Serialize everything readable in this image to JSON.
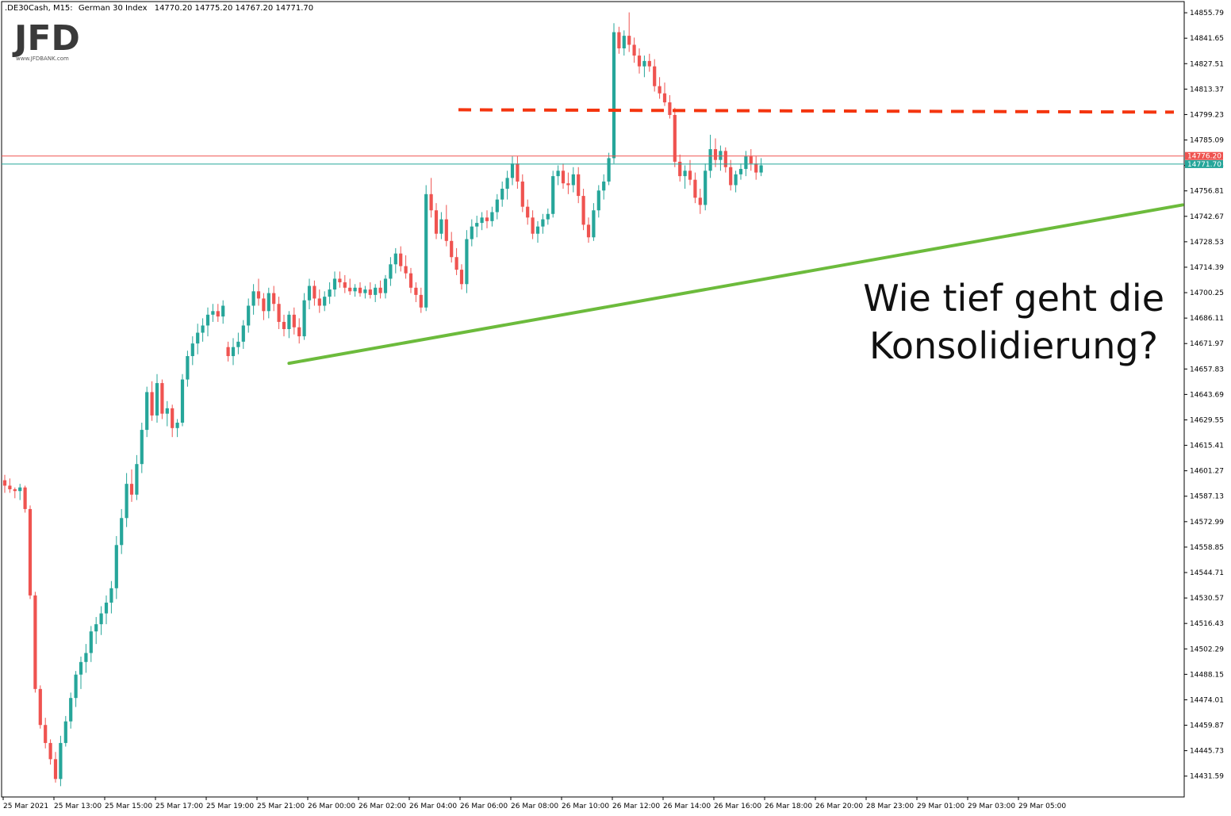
{
  "header": {
    "symbol": ".DE30Cash, M15:",
    "instrument": "German 30 Index",
    "ohlc": "14770.20 14775.20 14767.20 14771.70"
  },
  "logo": {
    "text": "JFD",
    "sub": "www.JFDBANK.com"
  },
  "annotation": {
    "line1": "Wie tief geht die",
    "line2": "Konsolidierung?"
  },
  "colors": {
    "bull": "#26a69a",
    "bear": "#ef5350",
    "resistance": "#f4350f",
    "trendline": "#6cbb3c",
    "ask_line": "#ef5350",
    "bid_line": "#26a69a"
  },
  "chart_data": {
    "type": "candlestick",
    "timeframe": "M15",
    "ylim": [
      14420,
      14862
    ],
    "y_ticks": [
      "14855.79",
      "14841.65",
      "14827.51",
      "14813.37",
      "14799.23",
      "14785.09",
      "14770.95",
      "14756.81",
      "14742.67",
      "14728.53",
      "14714.39",
      "14700.25",
      "14686.11",
      "14671.97",
      "14657.83",
      "14643.69",
      "14629.55",
      "14615.41",
      "14601.27",
      "14587.13",
      "14572.99",
      "14558.85",
      "14544.71",
      "14530.57",
      "14516.43",
      "14502.29",
      "14488.15",
      "14474.01",
      "14459.87",
      "14445.73",
      "14431.59"
    ],
    "x_ticks": [
      "25 Mar 2021",
      "25 Mar 13:00",
      "25 Mar 15:00",
      "25 Mar 17:00",
      "25 Mar 19:00",
      "25 Mar 21:00",
      "26 Mar 00:00",
      "26 Mar 02:00",
      "26 Mar 04:00",
      "26 Mar 06:00",
      "26 Mar 08:00",
      "26 Mar 10:00",
      "26 Mar 12:00",
      "26 Mar 14:00",
      "26 Mar 16:00",
      "26 Mar 18:00",
      "26 Mar 20:00",
      "28 Mar 23:00",
      "29 Mar 01:00",
      "29 Mar 03:00",
      "29 Mar 05:00"
    ],
    "price_labels": {
      "ask": "14776.20",
      "bid": "14771.70"
    },
    "resistance_level": 14801,
    "trendline": {
      "from": {
        "candle": 56,
        "price": 14661
      },
      "to": {
        "candle": 232,
        "price": 14749
      }
    },
    "candles": [
      [
        14596,
        14599,
        14589,
        14593
      ],
      [
        14593,
        14597,
        14589,
        14591
      ],
      [
        14591,
        14592,
        14586,
        14590
      ],
      [
        14590,
        14594,
        14585,
        14592
      ],
      [
        14592,
        14593,
        14578,
        14580
      ],
      [
        14580,
        14582,
        14530,
        14532
      ],
      [
        14532,
        14534,
        14478,
        14480
      ],
      [
        14480,
        14482,
        14458,
        14460
      ],
      [
        14460,
        14464,
        14447,
        14450
      ],
      [
        14450,
        14452,
        14438,
        14441
      ],
      [
        14441,
        14445,
        14428,
        14430
      ],
      [
        14430,
        14454,
        14426,
        14450
      ],
      [
        14450,
        14465,
        14448,
        14462
      ],
      [
        14462,
        14478,
        14458,
        14475
      ],
      [
        14475,
        14490,
        14470,
        14488
      ],
      [
        14488,
        14498,
        14480,
        14495
      ],
      [
        14495,
        14505,
        14489,
        14500
      ],
      [
        14500,
        14515,
        14495,
        14512
      ],
      [
        14512,
        14520,
        14505,
        14516
      ],
      [
        14516,
        14526,
        14510,
        14522
      ],
      [
        14522,
        14532,
        14516,
        14528
      ],
      [
        14528,
        14540,
        14522,
        14536
      ],
      [
        14536,
        14565,
        14530,
        14560
      ],
      [
        14560,
        14580,
        14555,
        14575
      ],
      [
        14575,
        14600,
        14570,
        14594
      ],
      [
        14594,
        14602,
        14584,
        14588
      ],
      [
        14588,
        14610,
        14585,
        14605
      ],
      [
        14605,
        14628,
        14600,
        14624
      ],
      [
        14624,
        14648,
        14620,
        14645
      ],
      [
        14645,
        14651,
        14629,
        14632
      ],
      [
        14632,
        14655,
        14628,
        14650
      ],
      [
        14650,
        14652,
        14630,
        14633
      ],
      [
        14633,
        14640,
        14626,
        14636
      ],
      [
        14636,
        14638,
        14620,
        14625
      ],
      [
        14625,
        14630,
        14620,
        14628
      ],
      [
        14628,
        14655,
        14626,
        14652
      ],
      [
        14652,
        14668,
        14648,
        14665
      ],
      [
        14665,
        14676,
        14660,
        14672
      ],
      [
        14672,
        14683,
        14666,
        14678
      ],
      [
        14678,
        14686,
        14673,
        14682
      ],
      [
        14682,
        14692,
        14676,
        14688
      ],
      [
        14688,
        14694,
        14684,
        14690
      ],
      [
        14690,
        14694,
        14684,
        14687
      ],
      [
        14687,
        14696,
        14683,
        14693
      ],
      [
        14670,
        14673,
        14662,
        14665
      ],
      [
        14665,
        14675,
        14660,
        14670
      ],
      [
        14670,
        14678,
        14666,
        14673
      ],
      [
        14673,
        14685,
        14669,
        14682
      ],
      [
        14682,
        14697,
        14678,
        14693
      ],
      [
        14693,
        14705,
        14688,
        14701
      ],
      [
        14701,
        14708,
        14693,
        14697
      ],
      [
        14697,
        14700,
        14685,
        14690
      ],
      [
        14690,
        14703,
        14686,
        14700
      ],
      [
        14700,
        14704,
        14690,
        14694
      ],
      [
        14694,
        14698,
        14680,
        14684
      ],
      [
        14684,
        14688,
        14676,
        14680
      ],
      [
        14680,
        14690,
        14675,
        14688
      ],
      [
        14688,
        14692,
        14677,
        14681
      ],
      [
        14681,
        14686,
        14672,
        14676
      ],
      [
        14676,
        14700,
        14674,
        14696
      ],
      [
        14696,
        14708,
        14691,
        14704
      ],
      [
        14704,
        14707,
        14693,
        14697
      ],
      [
        14697,
        14702,
        14689,
        14693
      ],
      [
        14693,
        14701,
        14690,
        14698
      ],
      [
        14698,
        14706,
        14694,
        14702
      ],
      [
        14702,
        14712,
        14698,
        14708
      ],
      [
        14708,
        14712,
        14703,
        14706
      ],
      [
        14706,
        14710,
        14700,
        14703
      ],
      [
        14703,
        14708,
        14699,
        14701
      ],
      [
        14701,
        14705,
        14698,
        14703
      ],
      [
        14703,
        14706,
        14698,
        14700
      ],
      [
        14700,
        14704,
        14697,
        14702
      ],
      [
        14702,
        14706,
        14697,
        14699
      ],
      [
        14699,
        14705,
        14695,
        14703
      ],
      [
        14703,
        14707,
        14697,
        14700
      ],
      [
        14700,
        14710,
        14697,
        14708
      ],
      [
        14708,
        14720,
        14704,
        14716
      ],
      [
        14716,
        14725,
        14711,
        14722
      ],
      [
        14722,
        14726,
        14712,
        14715
      ],
      [
        14715,
        14721,
        14708,
        14711
      ],
      [
        14711,
        14714,
        14700,
        14703
      ],
      [
        14703,
        14706,
        14695,
        14699
      ],
      [
        14699,
        14703,
        14689,
        14692
      ],
      [
        14692,
        14760,
        14690,
        14755
      ],
      [
        14755,
        14764,
        14742,
        14746
      ],
      [
        14746,
        14750,
        14730,
        14733
      ],
      [
        14733,
        14745,
        14730,
        14741
      ],
      [
        14741,
        14749,
        14726,
        14729
      ],
      [
        14729,
        14734,
        14717,
        14720
      ],
      [
        14720,
        14725,
        14710,
        14713
      ],
      [
        14713,
        14716,
        14702,
        14705
      ],
      [
        14705,
        14735,
        14700,
        14730
      ],
      [
        14730,
        14741,
        14726,
        14737
      ],
      [
        14737,
        14743,
        14731,
        14739
      ],
      [
        14739,
        14745,
        14735,
        14742
      ],
      [
        14742,
        14746,
        14736,
        14740
      ],
      [
        14740,
        14748,
        14737,
        14745
      ],
      [
        14745,
        14755,
        14741,
        14752
      ],
      [
        14752,
        14762,
        14748,
        14758
      ],
      [
        14758,
        14768,
        14752,
        14764
      ],
      [
        14764,
        14776,
        14760,
        14772
      ],
      [
        14772,
        14776,
        14758,
        14762
      ],
      [
        14762,
        14766,
        14745,
        14748
      ],
      [
        14748,
        14752,
        14738,
        14742
      ],
      [
        14742,
        14746,
        14730,
        14733
      ],
      [
        14733,
        14740,
        14728,
        14737
      ],
      [
        14737,
        14744,
        14733,
        14741
      ],
      [
        14741,
        14747,
        14738,
        14744
      ],
      [
        14744,
        14768,
        14742,
        14765
      ],
      [
        14765,
        14771,
        14760,
        14768
      ],
      [
        14768,
        14772,
        14758,
        14761
      ],
      [
        14761,
        14767,
        14755,
        14760
      ],
      [
        14760,
        14770,
        14756,
        14766
      ],
      [
        14766,
        14770,
        14750,
        14754
      ],
      [
        14754,
        14758,
        14735,
        14738
      ],
      [
        14738,
        14742,
        14728,
        14731
      ],
      [
        14731,
        14750,
        14729,
        14746
      ],
      [
        14746,
        14760,
        14742,
        14757
      ],
      [
        14757,
        14766,
        14752,
        14762
      ],
      [
        14762,
        14778,
        14760,
        14775
      ],
      [
        14775,
        14850,
        14772,
        14845
      ],
      [
        14845,
        14848,
        14833,
        14836
      ],
      [
        14836,
        14846,
        14832,
        14843
      ],
      [
        14843,
        14856,
        14834,
        14838
      ],
      [
        14838,
        14842,
        14828,
        14832
      ],
      [
        14832,
        14836,
        14822,
        14826
      ],
      [
        14826,
        14832,
        14820,
        14829
      ],
      [
        14829,
        14833,
        14823,
        14826
      ],
      [
        14826,
        14830,
        14812,
        14815
      ],
      [
        14815,
        14820,
        14808,
        14811
      ],
      [
        14811,
        14817,
        14804,
        14806
      ],
      [
        14806,
        14810,
        14797,
        14799
      ],
      [
        14799,
        14803,
        14770,
        14773
      ],
      [
        14773,
        14777,
        14762,
        14765
      ],
      [
        14765,
        14771,
        14758,
        14768
      ],
      [
        14768,
        14774,
        14760,
        14763
      ],
      [
        14763,
        14767,
        14750,
        14753
      ],
      [
        14753,
        14758,
        14744,
        14749
      ],
      [
        14749,
        14772,
        14746,
        14768
      ],
      [
        14768,
        14788,
        14764,
        14780
      ],
      [
        14780,
        14786,
        14770,
        14774
      ],
      [
        14774,
        14782,
        14768,
        14779
      ],
      [
        14779,
        14781,
        14767,
        14770
      ],
      [
        14770,
        14774,
        14757,
        14760
      ],
      [
        14760,
        14768,
        14756,
        14766
      ],
      [
        14766,
        14772,
        14763,
        14769
      ],
      [
        14769,
        14779,
        14765,
        14776
      ],
      [
        14776,
        14780,
        14768,
        14772
      ],
      [
        14772,
        14776,
        14763,
        14767
      ],
      [
        14767,
        14775,
        14765,
        14771
      ]
    ]
  }
}
